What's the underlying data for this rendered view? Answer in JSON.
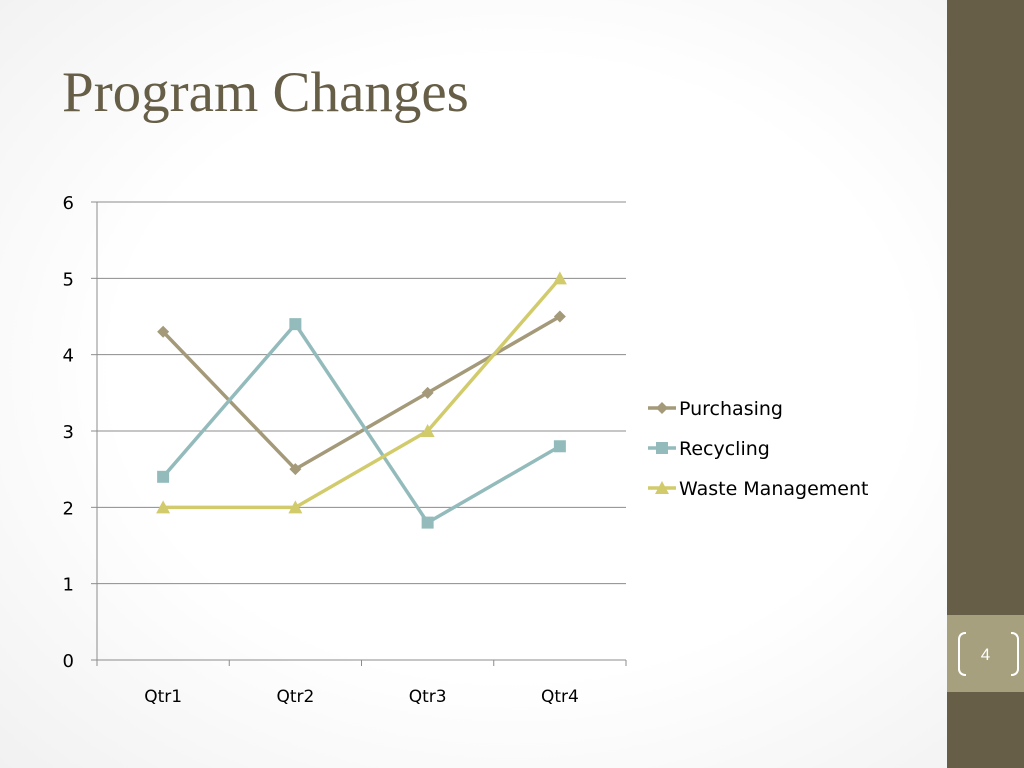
{
  "slide": {
    "title": "Program Changes",
    "page_number": "4"
  },
  "colors": {
    "title": "#675e47",
    "side_band": "#675e47",
    "page_box": "#a6a07f",
    "gridline": "#8c8c8c",
    "axis": "#8c8c8c",
    "text": "#000000"
  },
  "chart_data": {
    "type": "line",
    "categories": [
      "Qtr1",
      "Qtr2",
      "Qtr3",
      "Qtr4"
    ],
    "ylim": [
      0,
      6
    ],
    "yticks": [
      0,
      1,
      2,
      3,
      4,
      5,
      6
    ],
    "grid": true,
    "legend_position": "right",
    "series": [
      {
        "name": "Purchasing",
        "values": [
          4.3,
          2.5,
          3.5,
          4.5
        ],
        "color": "#a49a7a",
        "marker": "diamond"
      },
      {
        "name": "Recycling",
        "values": [
          2.4,
          4.4,
          1.8,
          2.8
        ],
        "color": "#94bbbc",
        "marker": "square"
      },
      {
        "name": "Waste Management",
        "values": [
          2.0,
          2.0,
          3.0,
          5.0
        ],
        "color": "#d2cb6c",
        "marker": "triangle"
      }
    ]
  }
}
